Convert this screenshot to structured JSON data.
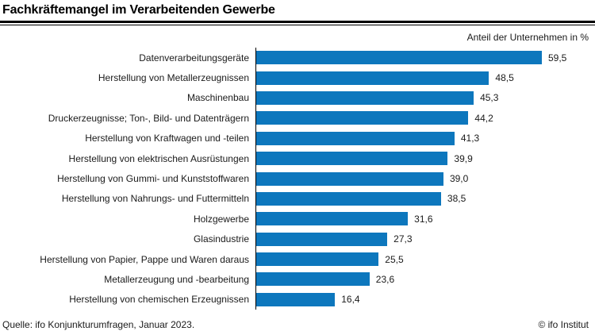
{
  "chart_data": {
    "type": "bar",
    "orientation": "horizontal",
    "title": "Fachkräftemangel im Verarbeitenden Gewerbe",
    "unit_label": "Anteil der Unternehmen in %",
    "categories": [
      "Datenverarbeitungsgeräte",
      "Herstellung von Metallerzeugnissen",
      "Maschinenbau",
      "Druckerzeugnisse; Ton-, Bild- und Datenträgern",
      "Herstellung von Kraftwagen und -teilen",
      "Herstellung von elektrischen Ausrüstungen",
      "Herstellung von Gummi- und Kunststoffwaren",
      "Herstellung von Nahrungs- und Futtermitteln",
      "Holzgewerbe",
      "Glasindustrie",
      "Herstellung von Papier, Pappe und Waren daraus",
      "Metallerzeugung und -bearbeitung",
      "Herstellung von chemischen Erzeugnissen"
    ],
    "values": [
      59.5,
      48.5,
      45.3,
      44.2,
      41.3,
      39.9,
      39.0,
      38.5,
      31.6,
      27.3,
      25.5,
      23.6,
      16.4
    ],
    "value_labels": [
      "59,5",
      "48,5",
      "45,3",
      "44,2",
      "41,3",
      "39,9",
      "39,0",
      "38,5",
      "31,6",
      "27,3",
      "25,5",
      "23,6",
      "16,4"
    ],
    "bar_color": "#0d77bd",
    "axis_color": "#000000",
    "xlim": [
      0,
      62
    ],
    "grid": false,
    "legend": false
  },
  "footer": {
    "source": "Quelle: ifo Konjunkturumfragen, Januar 2023.",
    "copyright": "© ifo Institut"
  }
}
